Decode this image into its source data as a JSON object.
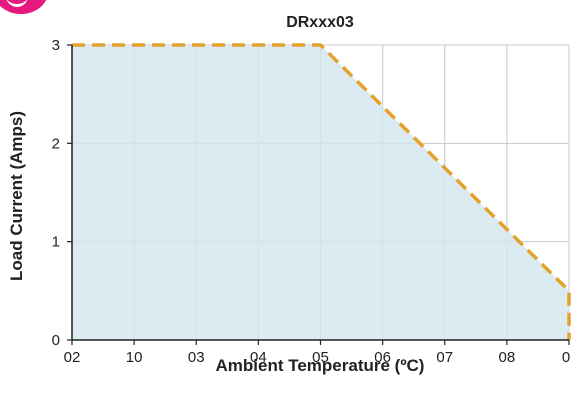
{
  "brand": {
    "accent_color": "#e6197f"
  },
  "chart_data": {
    "type": "area",
    "title": "DRxxx03",
    "xlabel": "Ambient Temperature (ºC)",
    "ylabel": "Load Current (Amps)",
    "x_tick_labels": [
      "02",
      "10",
      "03",
      "04",
      "05",
      "06",
      "07",
      "08",
      "0"
    ],
    "y_ticks": [
      0,
      1,
      2,
      3
    ],
    "ylim": [
      0,
      3
    ],
    "grid": true,
    "colors": {
      "fill": "#d6e6ee",
      "line": "#e3a32b",
      "grid": "#c4c9cc"
    },
    "series": [
      {
        "x_positions": [
          0,
          4,
          8,
          8
        ],
        "values": [
          3,
          3,
          0.5,
          0
        ]
      }
    ]
  }
}
